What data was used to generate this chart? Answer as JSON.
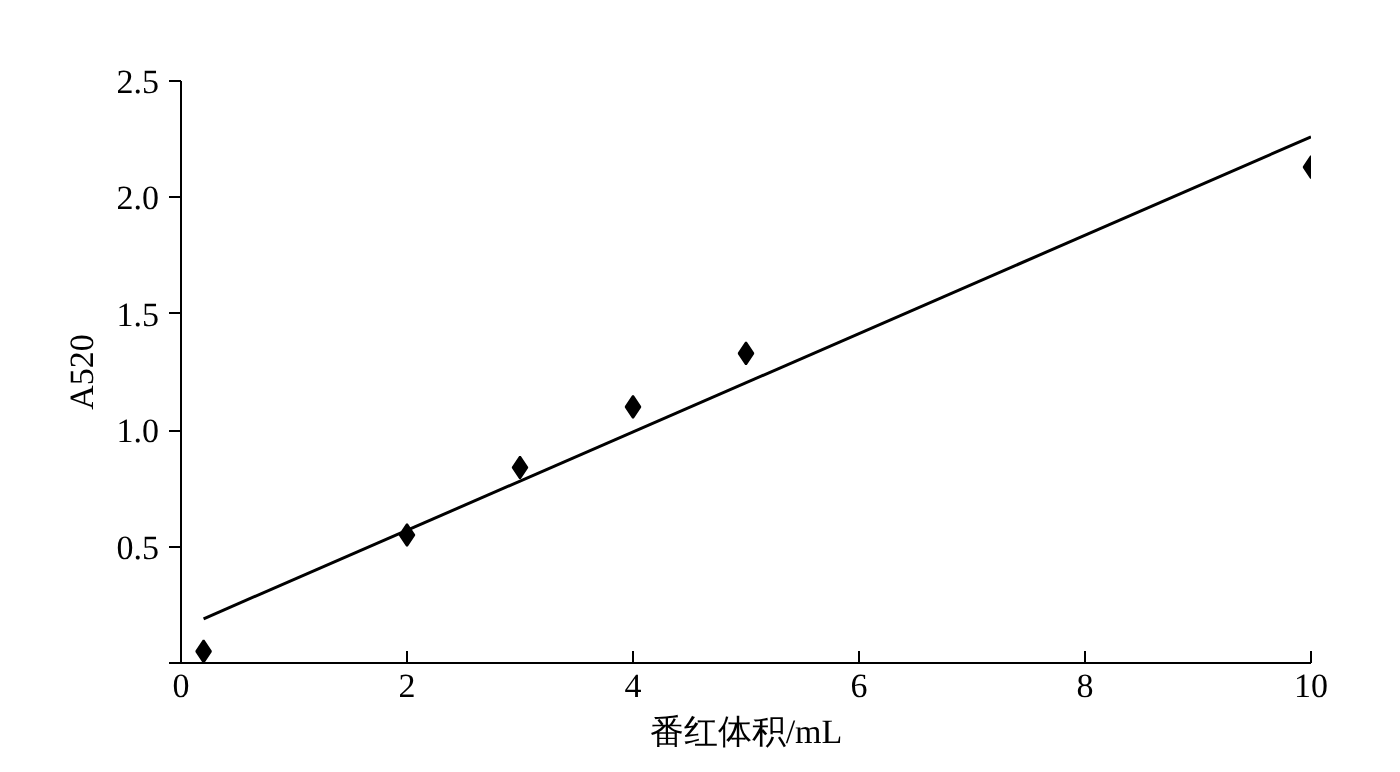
{
  "chart_data": {
    "type": "scatter",
    "xlabel": "番红体积/mL",
    "ylabel": "A520",
    "series": [
      {
        "color": "#000000",
        "marker": "diamond",
        "x": [
          0.2,
          2,
          3,
          4,
          5,
          10
        ],
        "values": [
          0.05,
          0.55,
          0.84,
          1.1,
          1.33,
          2.13
        ]
      },
      {
        "type": "line",
        "color": "#000000",
        "marker": "none",
        "x": [
          0.2,
          10
        ],
        "values": [
          0.19,
          2.26
        ]
      }
    ],
    "xlim": [
      0,
      10
    ],
    "ylim": [
      0,
      2.5
    ],
    "xticks": [
      0,
      2,
      4,
      6,
      8,
      10
    ],
    "yticks": [
      {
        "value": 0,
        "label": null
      },
      0.5,
      {
        "value": 1,
        "label": "1.0"
      },
      1.5,
      {
        "value": 2,
        "label": "2.0"
      },
      2.5
    ],
    "grid": false
  }
}
